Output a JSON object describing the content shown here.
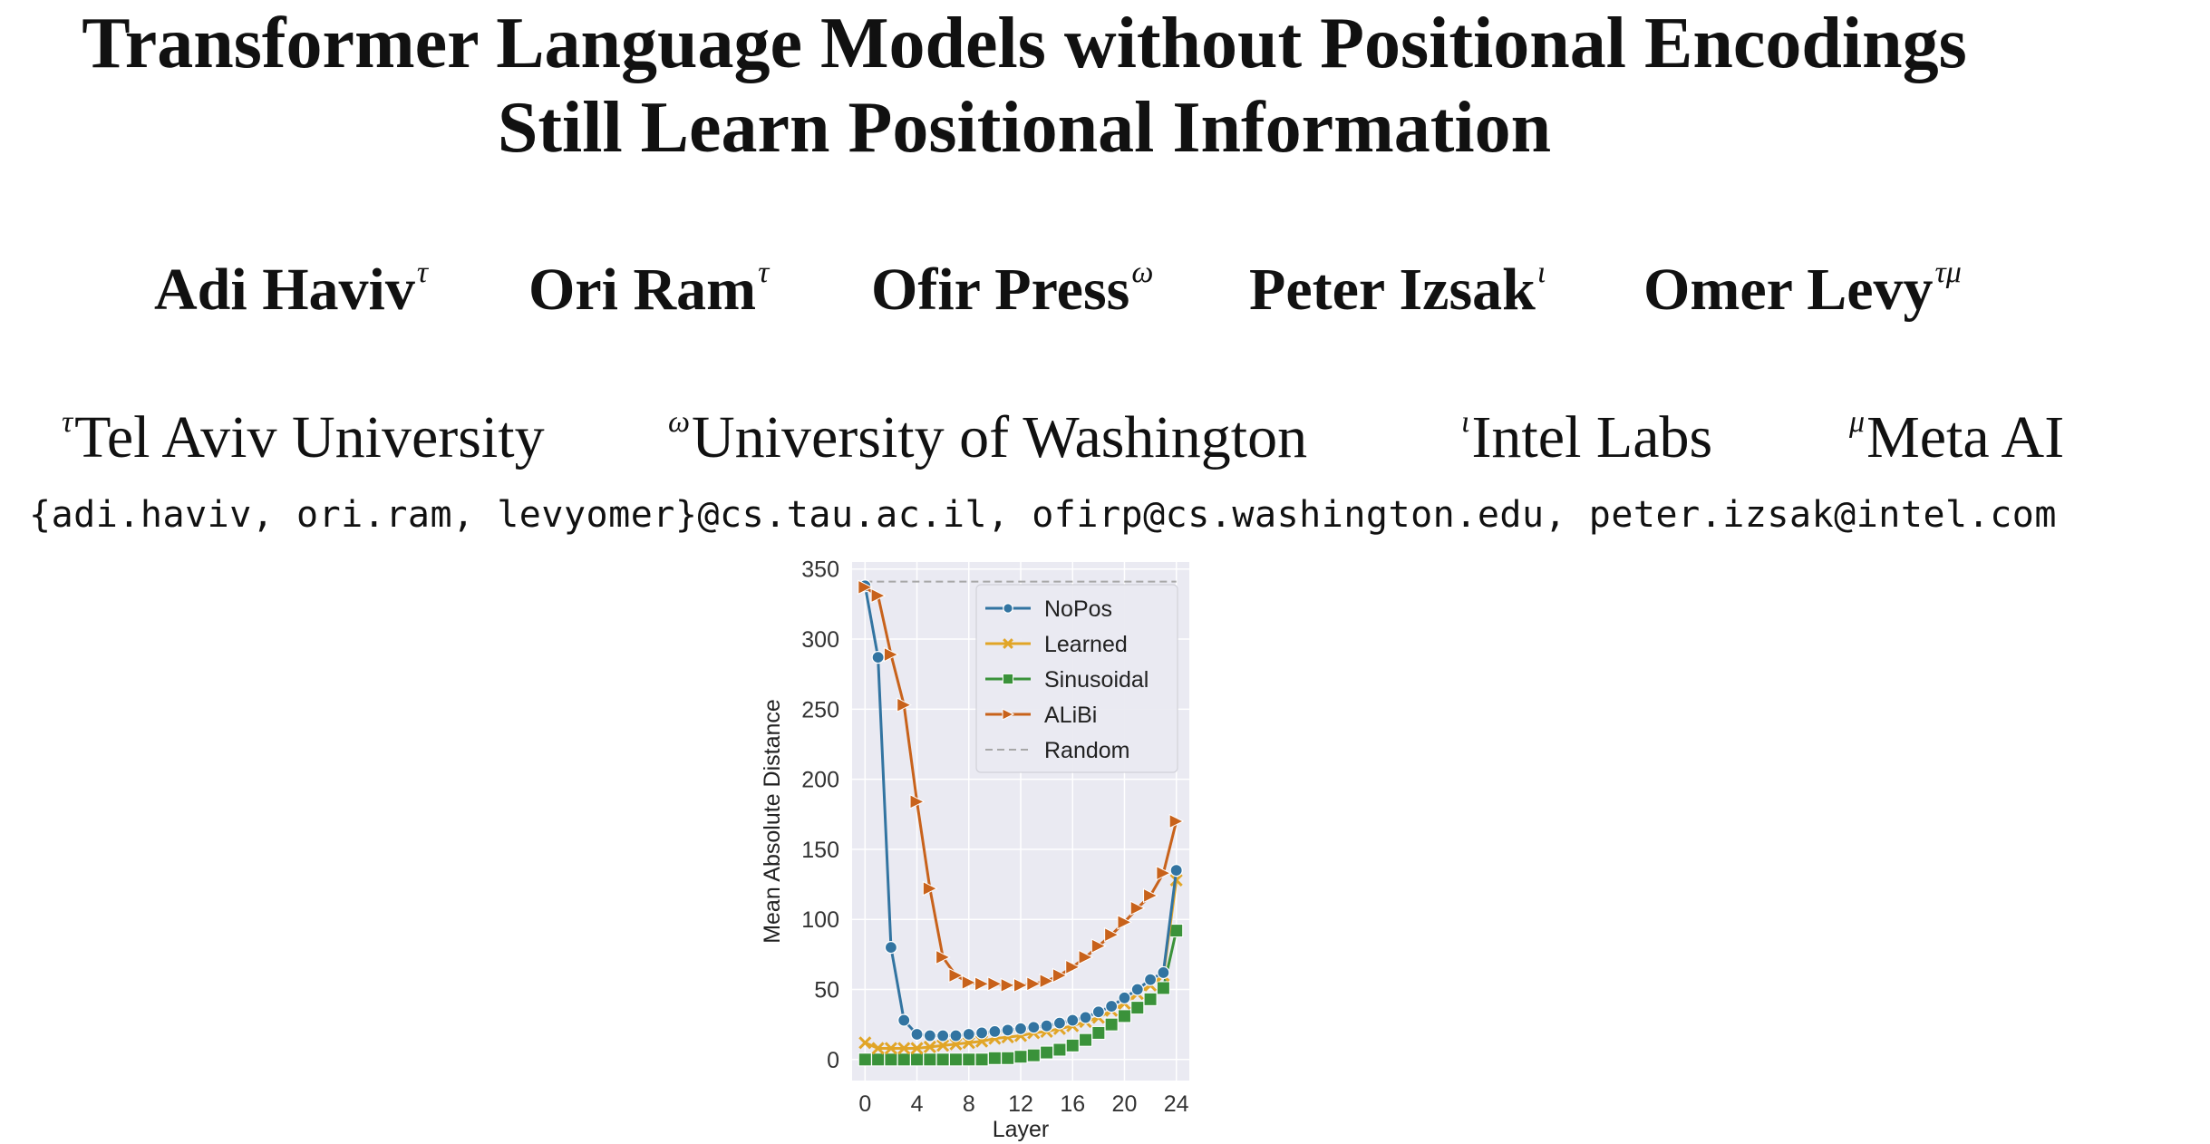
{
  "paper": {
    "title_line1": "Transformer Language Models without Positional Encodings",
    "title_line2": "Still Learn Positional Information",
    "authors": [
      {
        "name": "Adi Haviv",
        "mark": "τ"
      },
      {
        "name": "Ori Ram",
        "mark": "τ"
      },
      {
        "name": "Ofir Press",
        "mark": "ω"
      },
      {
        "name": "Peter Izsak",
        "mark": "ι"
      },
      {
        "name": "Omer Levy",
        "mark": "τμ"
      }
    ],
    "affiliations": [
      {
        "mark": "τ",
        "name": "Tel Aviv University"
      },
      {
        "mark": "ω",
        "name": "University of Washington"
      },
      {
        "mark": "ι",
        "name": "Intel Labs"
      },
      {
        "mark": "μ",
        "name": "Meta AI"
      }
    ],
    "emails": "{adi.haviv, ori.ram, levyomer}@cs.tau.ac.il, ofirp@cs.washington.edu, peter.izsak@intel.com"
  },
  "chart_data": {
    "type": "line",
    "xlabel": "Layer",
    "ylabel": "Mean Absolute Distance",
    "xlim": [
      -1,
      25
    ],
    "ylim": [
      -15,
      355
    ],
    "xticks": [
      0,
      4,
      8,
      12,
      16,
      20,
      24
    ],
    "yticks": [
      0,
      50,
      100,
      150,
      200,
      250,
      300,
      350
    ],
    "grid": true,
    "legend_position": "top-right",
    "x": [
      0,
      1,
      2,
      3,
      4,
      5,
      6,
      7,
      8,
      9,
      10,
      11,
      12,
      13,
      14,
      15,
      16,
      17,
      18,
      19,
      20,
      21,
      22,
      23,
      24
    ],
    "series": [
      {
        "name": "NoPos",
        "color": "#3274a1",
        "marker": "circle",
        "values": [
          338,
          287,
          80,
          28,
          18,
          17,
          17,
          17,
          18,
          19,
          20,
          21,
          22,
          23,
          24,
          26,
          28,
          30,
          34,
          38,
          44,
          50,
          57,
          62,
          135
        ]
      },
      {
        "name": "Learned",
        "color": "#e1a527",
        "marker": "x",
        "values": [
          12,
          8,
          8,
          8,
          8,
          9,
          10,
          11,
          12,
          13,
          15,
          16,
          17,
          19,
          20,
          22,
          24,
          27,
          30,
          35,
          40,
          47,
          53,
          60,
          128
        ]
      },
      {
        "name": "Sinusoidal",
        "color": "#3a923a",
        "marker": "square",
        "values": [
          0,
          0,
          0,
          0,
          0,
          0,
          0,
          0,
          0,
          0,
          1,
          1,
          2,
          3,
          5,
          7,
          10,
          14,
          19,
          25,
          31,
          37,
          43,
          51,
          92
        ]
      },
      {
        "name": "ALiBi",
        "color": "#c8621b",
        "marker": "triangle-right",
        "values": [
          337,
          331,
          289,
          253,
          184,
          122,
          73,
          60,
          55,
          54,
          54,
          53,
          53,
          54,
          56,
          60,
          66,
          73,
          81,
          89,
          98,
          108,
          117,
          133,
          170
        ]
      },
      {
        "name": "Random",
        "color": "#a7a7a7",
        "marker": "none",
        "dashed": true,
        "values": [
          341,
          341,
          341,
          341,
          341,
          341,
          341,
          341,
          341,
          341,
          341,
          341,
          341,
          341,
          341,
          341,
          341,
          341,
          341,
          341,
          341,
          341,
          341,
          341,
          341
        ]
      }
    ]
  }
}
